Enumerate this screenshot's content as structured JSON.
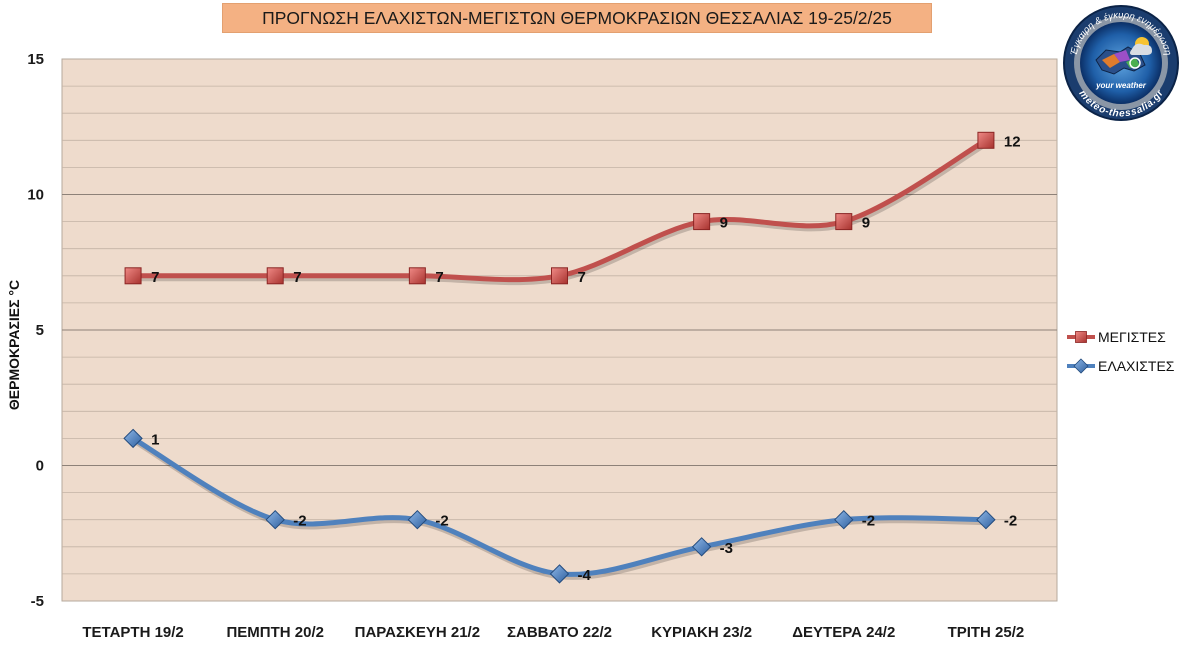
{
  "chart_data": {
    "type": "line",
    "title": "ΠΡΟΓΝΩΣΗ ΕΛΑΧΙΣΤΩΝ-ΜΕΓΙΣΤΩΝ  ΘΕΡΜΟΚΡΑΣΙΩΝ  ΘΕΣΣΑΛΙΑΣ  19-25/2/25",
    "ylabel": "ΘΕΡΜΟΚΡΑΣΙΕΣ °C",
    "xlabel": "",
    "categories": [
      "ΤΕΤΑΡΤΗ 19/2",
      "ΠΕΜΠΤΗ 20/2",
      "ΠΑΡΑΣΚΕΥΗ 21/2",
      "ΣΑΒΒΑΤΟ 22/2",
      "ΚΥΡΙΑΚΗ 23/2",
      "ΔΕΥΤΕΡΑ 24/2",
      "ΤΡΙΤΗ 25/2"
    ],
    "ylim": [
      -5,
      15
    ],
    "yticks": [
      -5,
      0,
      5,
      10,
      15
    ],
    "grid": true,
    "legend_position": "right",
    "series": [
      {
        "name": "ΜΕΓΙΣΤΕΣ",
        "values": [
          7,
          7,
          7,
          7,
          9,
          9,
          12
        ],
        "color": "#c0504d",
        "marker": "square",
        "labels": [
          "7",
          "7",
          "7",
          "7",
          "9",
          "9",
          "12"
        ]
      },
      {
        "name": "ΕΛΑΧΙΣΤΕΣ",
        "values": [
          1,
          -2,
          -2,
          -4,
          -3,
          -2,
          -2
        ],
        "color": "#4f81bd",
        "marker": "diamond",
        "labels": [
          "1",
          "-2",
          "-2",
          "-4",
          "-3",
          "-2",
          "-2"
        ]
      }
    ]
  },
  "logo": {
    "top_text": "Έγκαιρη & έγκυρη ενημέρωση",
    "bottom_text": "meteo-thessalia.gr",
    "tagline": "your weather"
  },
  "colors": {
    "plot_background": "#eedbcc",
    "title_background": "#f4b183"
  }
}
